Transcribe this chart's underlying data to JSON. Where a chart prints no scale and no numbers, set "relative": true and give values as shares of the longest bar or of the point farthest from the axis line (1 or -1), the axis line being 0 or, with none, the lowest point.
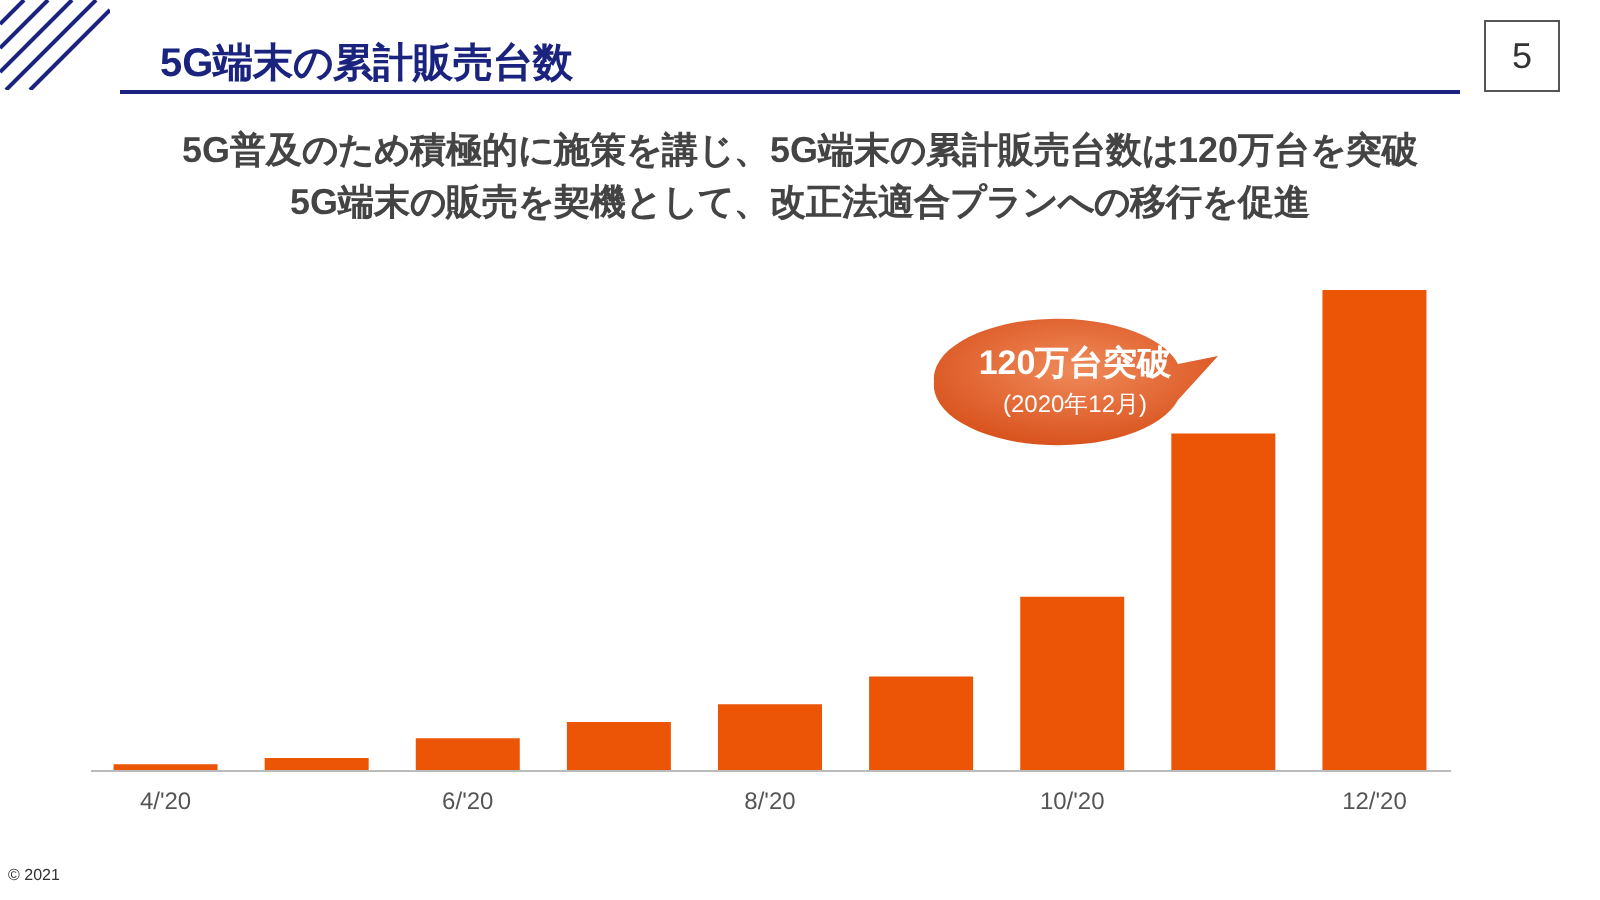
{
  "chart_data": {
    "type": "bar",
    "title": "5G端末の累計販売台数",
    "subtitle": "5G普及のため積極的に施策を講じ、5G端末の累計販売台数は120万台を突破\n5G端末の販売を契機として、改正法適合プランへの移行を促進",
    "categories": [
      "4/'20",
      null,
      "6/'20",
      null,
      "8/'20",
      null,
      "10/'20",
      null,
      "12/'20"
    ],
    "values": [
      0.012,
      0.025,
      0.066,
      0.1,
      0.137,
      0.195,
      0.361,
      0.701,
      1
    ],
    "color": "#eb5505",
    "relative": true,
    "grid": false,
    "annotations": [
      "120万台突破",
      "(2020年12月)",
      "5",
      "© 2021"
    ]
  }
}
